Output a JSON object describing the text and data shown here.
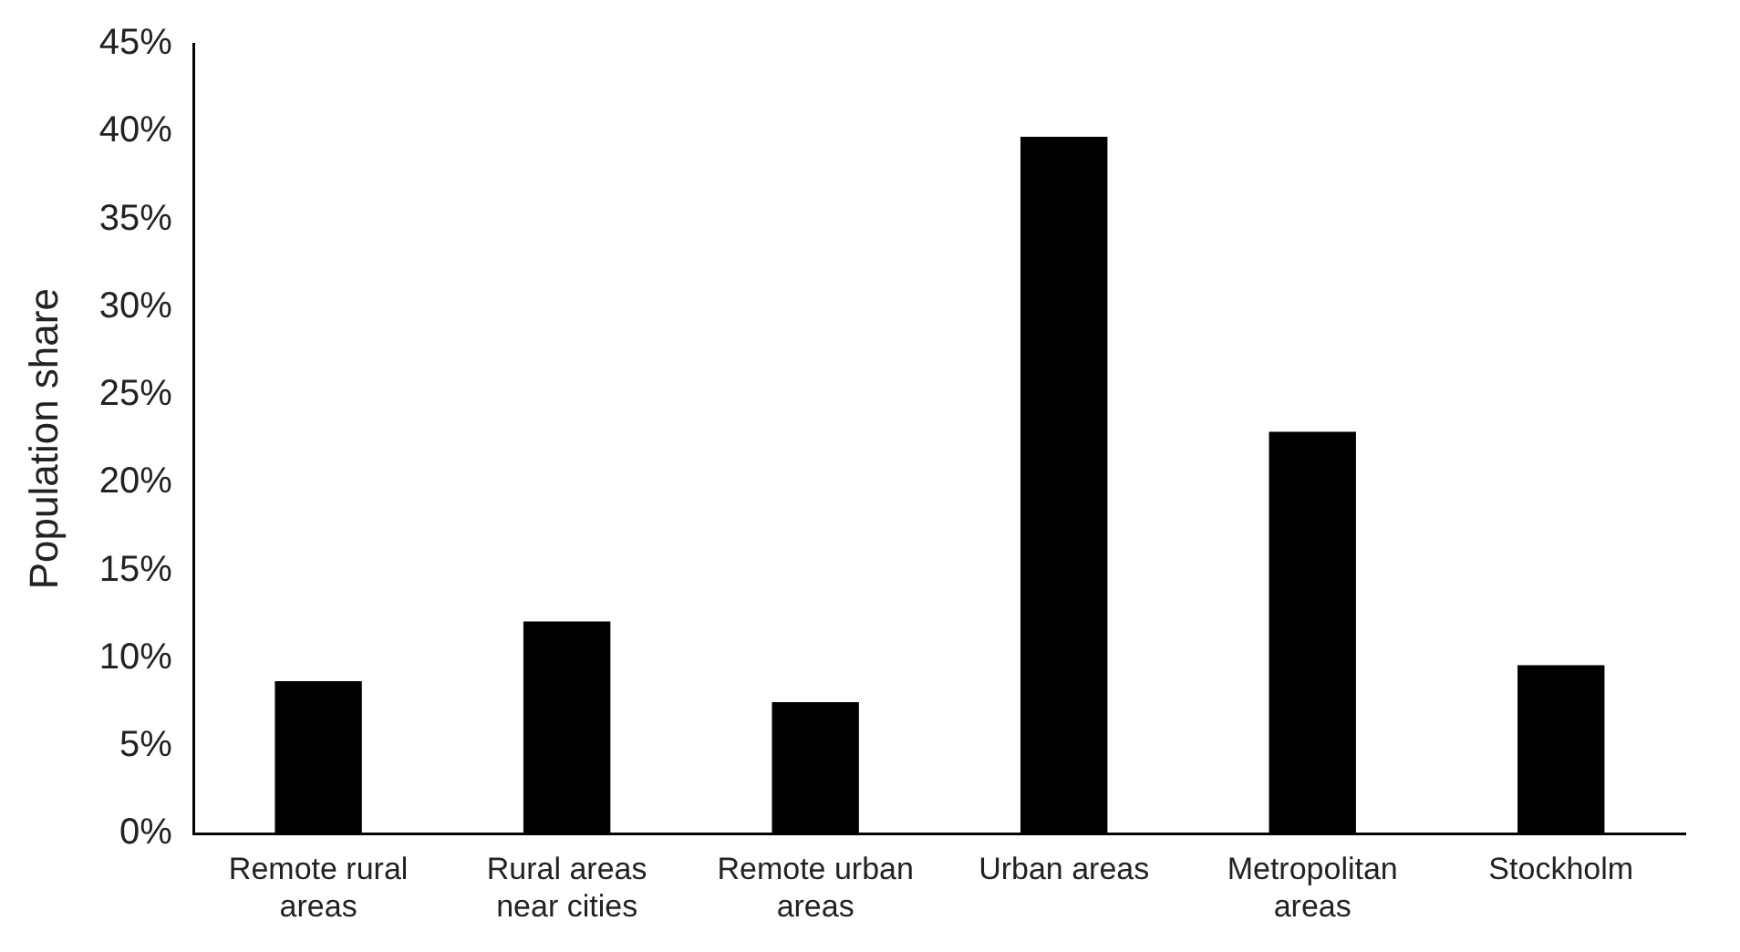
{
  "chart_data": {
    "type": "bar",
    "ylabel": "Population share",
    "categories": [
      "Remote rural areas",
      "Rural areas near cities",
      "Remote urban areas",
      "Urban areas",
      "Metropolitan areas",
      "Stockholm"
    ],
    "values": [
      8.7,
      12.1,
      7.5,
      39.7,
      22.9,
      9.6
    ],
    "color": "#000000",
    "ylim": [
      0,
      45
    ],
    "yticks": [
      {
        "value": 0,
        "label": "0%"
      },
      {
        "value": 5,
        "label": "5%"
      },
      {
        "value": 10,
        "label": "10%"
      },
      {
        "value": 15,
        "label": "15%"
      },
      {
        "value": 20,
        "label": "20%"
      },
      {
        "value": 25,
        "label": "25%"
      },
      {
        "value": 30,
        "label": "30%"
      },
      {
        "value": 35,
        "label": "35%"
      },
      {
        "value": 40,
        "label": "40%"
      },
      {
        "value": 45,
        "label": "45%"
      }
    ],
    "grid": false,
    "legend": false
  }
}
